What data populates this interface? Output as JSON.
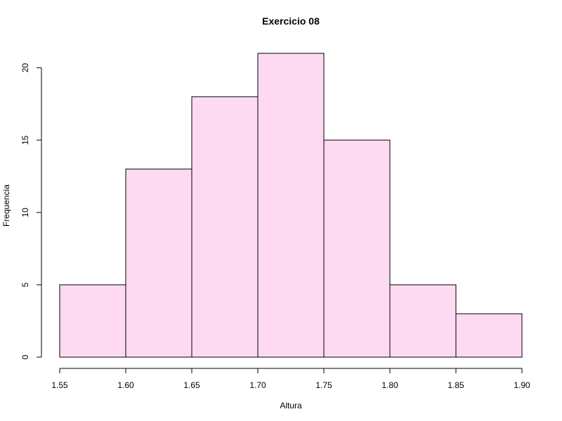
{
  "chart_data": {
    "type": "bar",
    "title": "Exercicio 08",
    "xlabel": "Altura",
    "ylabel": "Frequencia",
    "bin_edges": [
      1.55,
      1.6,
      1.65,
      1.7,
      1.75,
      1.8,
      1.85,
      1.9
    ],
    "values": [
      5,
      13,
      18,
      21,
      15,
      5,
      3
    ],
    "xlim": [
      1.55,
      1.9
    ],
    "ylim": [
      0,
      21
    ],
    "x_ticks": [
      "1.55",
      "1.60",
      "1.65",
      "1.70",
      "1.75",
      "1.80",
      "1.85",
      "1.90"
    ],
    "y_ticks": [
      "0",
      "5",
      "10",
      "15",
      "20"
    ],
    "bar_color": "#fddaf2",
    "grid": false,
    "legend": "none"
  }
}
